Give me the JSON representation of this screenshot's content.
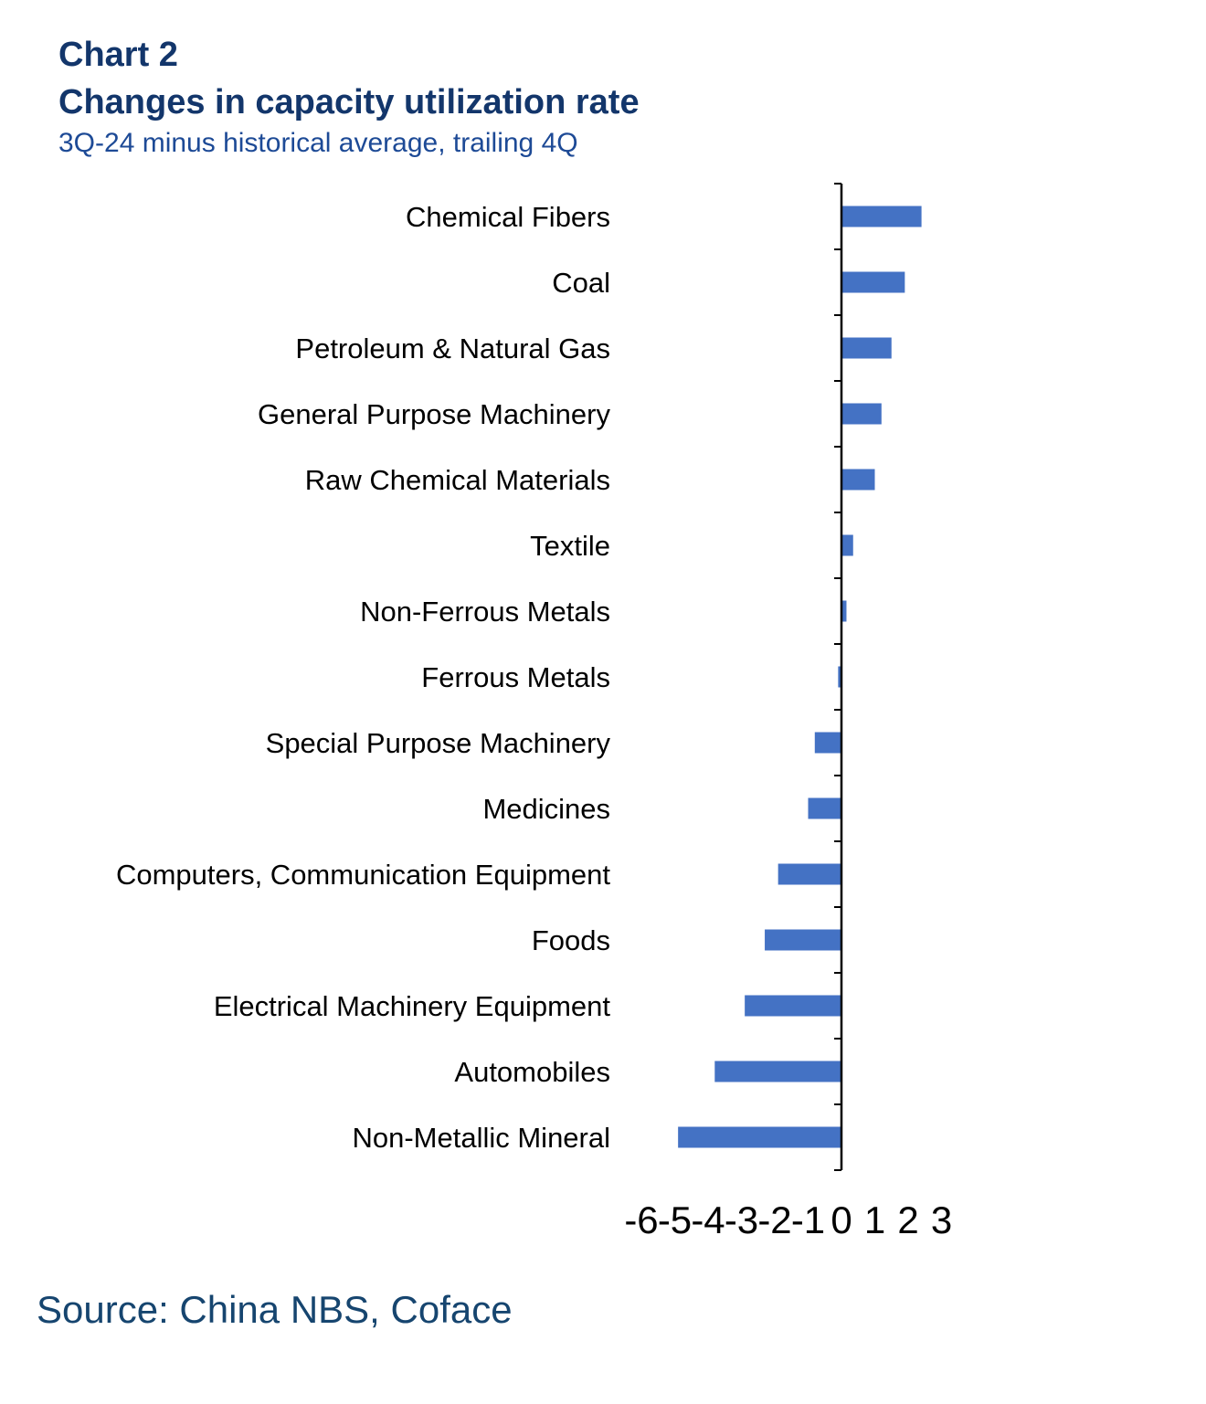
{
  "header": {
    "chart_label": "Chart 2",
    "title": "Changes in capacity utilization rate",
    "subtitle": "3Q-24 minus historical average, trailing 4Q"
  },
  "footer": {
    "source": "Source: China NBS, Coface"
  },
  "colors": {
    "bar": "#4472c4",
    "title": "#13366b",
    "subtitle": "#1d4a96",
    "axis": "#000000"
  },
  "chart_data": {
    "type": "bar",
    "orientation": "horizontal",
    "title": "Changes in capacity utilization rate",
    "subtitle": "3Q-24 minus historical average, trailing 4Q",
    "categories": [
      "Chemical Fibers",
      "Coal",
      "Petroleum & Natural Gas",
      "General Purpose Machinery",
      "Raw Chemical Materials",
      "Textile",
      "Non-Ferrous Metals",
      "Ferrous Metals",
      "Special Purpose Machinery",
      "Medicines",
      "Computers, Communication Equipment",
      "Foods",
      "Electrical Machinery Equipment",
      "Automobiles",
      "Non-Metallic Mineral"
    ],
    "values": [
      2.4,
      1.9,
      1.5,
      1.2,
      1.0,
      0.35,
      0.15,
      -0.1,
      -0.8,
      -1.0,
      -1.9,
      -2.3,
      -2.9,
      -3.8,
      -4.9
    ],
    "xlim": [
      -6,
      3
    ],
    "xticks": [
      "-6",
      "-5",
      "-4",
      "-3",
      "-2",
      "-1",
      "0",
      "1",
      "2",
      "3"
    ],
    "grid": false,
    "legend": "none"
  }
}
